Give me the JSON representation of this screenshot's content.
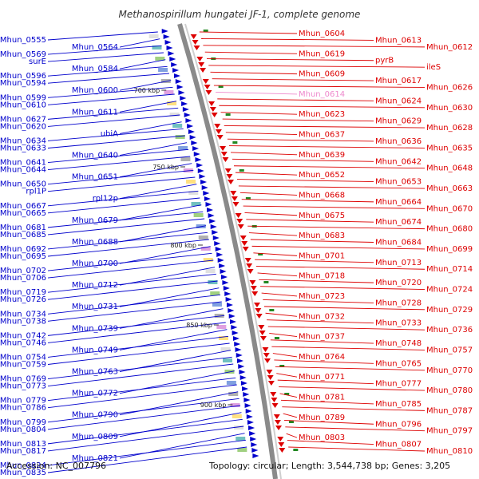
{
  "title": "Methanospirillum hungatei JF-1, complete genome",
  "footer": {
    "accession": "Accession: NC_007796",
    "stats": "Topology: circular; Length: 3,544,738 bp; Genes: 3,205"
  },
  "colors": {
    "left": "#0000cc",
    "right": "#dd0000",
    "highlight": "#ee88cc",
    "backbone": "#999999"
  },
  "ticks": [
    {
      "label": "700 kbp",
      "value": 700
    },
    {
      "label": "750 kbp",
      "value": 750
    },
    {
      "label": "800 kbp",
      "value": 800
    },
    {
      "label": "850 kbp",
      "value": 850
    },
    {
      "label": "900 kbp",
      "value": 900
    }
  ],
  "left_labels": [
    "Mhun_0555",
    "Mhun_0564",
    "Mhun_0569",
    "surE",
    "Mhun_0584",
    "Mhun_0596",
    "Mhun_0594",
    "Mhun_0600",
    "Mhun_0599",
    "Mhun_0610",
    "Mhun_0611",
    "Mhun_0627",
    "Mhun_0620",
    "ubiA",
    "Mhun_0634",
    "Mhun_0633",
    "Mhun_0640",
    "Mhun_0641",
    "Mhun_0644",
    "Mhun_0651",
    "Mhun_0650",
    "rpl1P",
    "rpl12p",
    "Mhun_0667",
    "Mhun_0665",
    "Mhun_0679",
    "Mhun_0681",
    "Mhun_0685",
    "Mhun_0688",
    "Mhun_0692",
    "Mhun_0695",
    "Mhun_0700",
    "Mhun_0702",
    "Mhun_0706",
    "Mhun_0712",
    "Mhun_0719",
    "Mhun_0726",
    "Mhun_0731",
    "Mhun_0734",
    "Mhun_0738",
    "Mhun_0739",
    "Mhun_0742",
    "Mhun_0746",
    "Mhun_0749",
    "Mhun_0754",
    "Mhun_0759",
    "Mhun_0763",
    "Mhun_0769",
    "Mhun_0773",
    "Mhun_0772",
    "Mhun_0779",
    "Mhun_0786",
    "Mhun_0790",
    "Mhun_0799",
    "Mhun_0804",
    "Mhun_0809",
    "Mhun_0813",
    "Mhun_0817",
    "Mhun_0821",
    "Mhun_0824",
    "Mhun_0835"
  ],
  "right_labels": [
    "Mhun_0604",
    "Mhun_0613",
    "Mhun_0612",
    "Mhun_0619",
    "pyrB",
    "ileS",
    "Mhun_0609",
    "Mhun_0617",
    "Mhun_0626",
    "Mhun_0614",
    "Mhun_0624",
    "Mhun_0630",
    "Mhun_0623",
    "Mhun_0629",
    "Mhun_0628",
    "Mhun_0637",
    "Mhun_0636",
    "Mhun_0635",
    "Mhun_0639",
    "Mhun_0642",
    "Mhun_0648",
    "Mhun_0652",
    "Mhun_0653",
    "Mhun_0663",
    "Mhun_0668",
    "Mhun_0664",
    "Mhun_0670",
    "Mhun_0675",
    "Mhun_0674",
    "Mhun_0680",
    "Mhun_0683",
    "Mhun_0684",
    "Mhun_0699",
    "Mhun_0701",
    "Mhun_0713",
    "Mhun_0714",
    "Mhun_0718",
    "Mhun_0720",
    "Mhun_0724",
    "Mhun_0723",
    "Mhun_0728",
    "Mhun_0729",
    "Mhun_0732",
    "Mhun_0733",
    "Mhun_0736",
    "Mhun_0737",
    "Mhun_0748",
    "Mhun_0757",
    "Mhun_0764",
    "Mhun_0765",
    "Mhun_0770",
    "Mhun_0771",
    "Mhun_0777",
    "Mhun_0780",
    "Mhun_0781",
    "Mhun_0785",
    "Mhun_0787",
    "Mhun_0789",
    "Mhun_0796",
    "Mhun_0797",
    "Mhun_0803",
    "Mhun_0807",
    "Mhun_0810"
  ]
}
